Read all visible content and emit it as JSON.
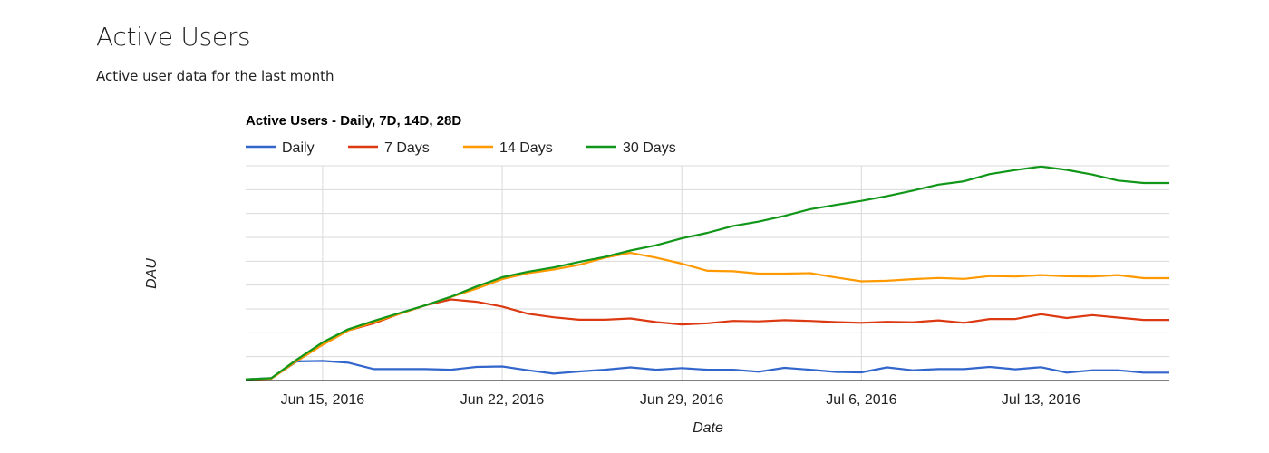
{
  "page": {
    "title": "Active Users",
    "subtitle": "Active user data for the last month"
  },
  "chart_data": {
    "type": "line",
    "title": "Active Users - Daily, 7D, 14D, 28D",
    "xlabel": "Date",
    "ylabel": "DAU",
    "legend_position": "top",
    "grid": true,
    "y_tick_labels_shown": false,
    "x_tick_labels": [
      "Jun 15, 2016",
      "Jun 22, 2016",
      "Jun 29, 2016",
      "Jul 6, 2016",
      "Jul 13, 2016"
    ],
    "x": [
      "2016-06-12",
      "2016-06-13",
      "2016-06-14",
      "2016-06-15",
      "2016-06-16",
      "2016-06-17",
      "2016-06-18",
      "2016-06-19",
      "2016-06-20",
      "2016-06-21",
      "2016-06-22",
      "2016-06-23",
      "2016-06-24",
      "2016-06-25",
      "2016-06-26",
      "2016-06-27",
      "2016-06-28",
      "2016-06-29",
      "2016-06-30",
      "2016-07-01",
      "2016-07-02",
      "2016-07-03",
      "2016-07-04",
      "2016-07-05",
      "2016-07-06",
      "2016-07-07",
      "2016-07-08",
      "2016-07-09",
      "2016-07-10",
      "2016-07-11",
      "2016-07-12",
      "2016-07-13",
      "2016-07-14",
      "2016-07-15",
      "2016-07-16",
      "2016-07-17",
      "2016-07-18"
    ],
    "ylim": [
      0,
      90
    ],
    "series": [
      {
        "name": "Daily",
        "color": "#3366cc",
        "values": [
          0.5,
          1,
          8,
          8.2,
          7.5,
          4.8,
          4.8,
          4.8,
          4.5,
          5.7,
          5.9,
          4.3,
          2.9,
          3.8,
          4.5,
          5.5,
          4.5,
          5.2,
          4.5,
          4.5,
          3.7,
          5.3,
          4.5,
          3.6,
          3.4,
          5.5,
          4.3,
          4.8,
          4.8,
          5.7,
          4.7,
          5.6,
          3.3,
          4.3,
          4.3,
          3.3,
          3.3
        ]
      },
      {
        "name": "7 Days",
        "color": "#dc3912",
        "values": [
          0.5,
          0.8,
          8.2,
          15,
          21,
          24,
          28,
          31.5,
          34,
          33,
          31,
          28,
          26.5,
          25.5,
          25.5,
          26,
          24.5,
          23.5,
          24,
          25,
          24.8,
          25.3,
          25,
          24.5,
          24.2,
          24.6,
          24.4,
          25.2,
          24.2,
          25.8,
          25.8,
          27.8,
          26.2,
          27.4,
          26.4,
          25.4,
          25.4
        ]
      },
      {
        "name": "14 Days",
        "color": "#ff9900",
        "values": [
          0.5,
          0.8,
          8.2,
          15,
          21,
          24.5,
          28,
          31.5,
          35,
          38.5,
          42.5,
          45,
          46.5,
          48.5,
          51.5,
          53.5,
          51.5,
          49,
          46,
          45.8,
          44.8,
          44.8,
          45,
          43.2,
          41.6,
          41.8,
          42.5,
          43,
          42.6,
          43.8,
          43.6,
          44.2,
          43.7,
          43.6,
          44.2,
          42.9,
          42.9
        ]
      },
      {
        "name": "30 Days",
        "color": "#109618",
        "values": [
          0.5,
          1,
          8.8,
          16,
          21.5,
          25,
          28.3,
          31.5,
          35.1,
          39.4,
          43.3,
          45.6,
          47.4,
          49.7,
          51.8,
          54.5,
          56.7,
          59.6,
          61.9,
          64.8,
          66.6,
          69,
          71.8,
          73.6,
          75.3,
          77.3,
          79.6,
          82.1,
          83.5,
          86.5,
          88.2,
          89.7,
          88.3,
          86.3,
          83.8,
          82.8,
          82.8
        ]
      }
    ]
  }
}
